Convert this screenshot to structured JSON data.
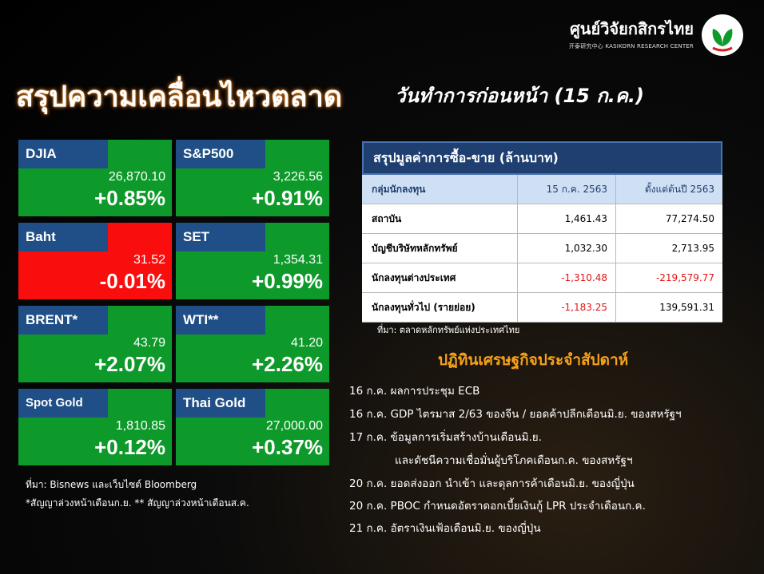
{
  "header": {
    "brand_name": "ศูนย์วิจัยกสิกรไทย",
    "brand_subtitle": "开泰研究中心 KASIKORN RESEARCH CENTER",
    "title": "สรุปความเคลื่อนไหวตลาด",
    "subtitle": "วันทำการก่อนหน้า (15 ก.ค.)"
  },
  "colors": {
    "up": "#0e9a2a",
    "down": "#fa0d0d",
    "label_bg": "#1f4f86",
    "accent": "#f7a21b"
  },
  "tiles": [
    {
      "name": "DJIA",
      "value": "26,870.10",
      "change": "+0.85%"
    },
    {
      "name": "S&P500",
      "value": "3,226.56",
      "change": "+0.91%"
    },
    {
      "name": "Baht",
      "value": "31.52",
      "change": "-0.01%"
    },
    {
      "name": "SET",
      "value": "1,354.31",
      "change": "+0.99%"
    },
    {
      "name": "BRENT*",
      "value": "43.79",
      "change": "+2.07%"
    },
    {
      "name": "WTI**",
      "value": "41.20",
      "change": "+2.26%"
    },
    {
      "name": "Spot Gold",
      "value": "1,810.85",
      "change": "+0.12%"
    },
    {
      "name": "Thai Gold",
      "value": "27,000.00",
      "change": "+0.37%"
    }
  ],
  "tiles_notes": {
    "source": "ที่มา: Bisnews และเว็บไซต์ Bloomberg",
    "footnote": "*สัญญาล่วงหน้าเดือนก.ย. ** สัญญาล่วงหน้าเดือนส.ค."
  },
  "trade_table": {
    "title": "สรุปมูลค่าการซื้อ-ขาย (ล้านบาท)",
    "headers": [
      "กลุ่มนักลงทุน",
      "15 ก.ค. 2563",
      "ตั้งแต่ต้นปี 2563"
    ],
    "rows": [
      [
        "สถาบัน",
        "1,461.43",
        "77,274.50"
      ],
      [
        "บัญชีบริษัทหลักทรัพย์",
        "1,032.30",
        "2,713.95"
      ],
      [
        "นักลงทุนต่างประเทศ",
        "-1,310.48",
        "-219,579.77"
      ],
      [
        "นักลงทุนทั่วไป (รายย่อย)",
        "-1,183.25",
        "139,591.31"
      ]
    ],
    "source": "ที่มา: ตลาดหลักทรัพย์แห่งประเทศไทย"
  },
  "calendar": {
    "title": "ปฏิทินเศรษฐกิจประจำสัปดาห์",
    "items": [
      "16 ก.ค. ผลการประชุม ECB",
      "16 ก.ค. GDP ไตรมาส 2/63 ของจีน / ยอดค้าปลีกเดือนมิ.ย. ของสหรัฐฯ",
      "17 ก.ค. ข้อมูลการเริ่มสร้างบ้านเดือนมิ.ย.",
      "และดัชนีความเชื่อมั่นผู้บริโภคเดือนก.ค. ของสหรัฐฯ",
      "20 ก.ค. ยอดส่งออก นำเข้า และดุลการค้าเดือนมิ.ย. ของญี่ปุ่น",
      "20 ก.ค. PBOC กำหนดอัตราดอกเบี้ยเงินกู้ LPR ประจำเดือนก.ค.",
      "21 ก.ค. อัตราเงินเฟ้อเดือนมิ.ย. ของญี่ปุ่น"
    ]
  }
}
